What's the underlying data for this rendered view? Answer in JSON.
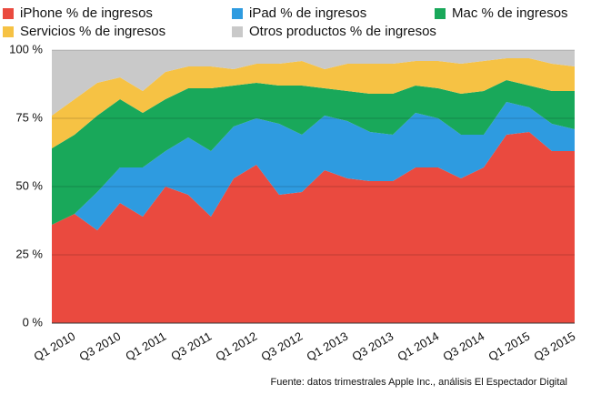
{
  "chart_data": {
    "type": "stacked_area",
    "categories": [
      null,
      "Q1 2010",
      null,
      "Q3 2010",
      null,
      "Q1 2011",
      null,
      "Q3 2011",
      null,
      "Q1 2012",
      null,
      "Q3 2012",
      null,
      "Q1 2013",
      null,
      "Q3 2013",
      null,
      "Q1 2014",
      null,
      "Q3 2014",
      null,
      "Q1 2015",
      null,
      "Q3 2015"
    ],
    "series": [
      {
        "name": "iPhone % de ingresos",
        "color": "#ea4a3f",
        "values": [
          36,
          40,
          34,
          44,
          39,
          50,
          47,
          39,
          53,
          58,
          47,
          48,
          56,
          53,
          52,
          52,
          57,
          57,
          53,
          57,
          69,
          70,
          63,
          63
        ]
      },
      {
        "name": "iPad % de ingresos",
        "color": "#2e9be0",
        "values": [
          0,
          0,
          14,
          13,
          18,
          13,
          21,
          24,
          19,
          17,
          26,
          21,
          20,
          21,
          18,
          17,
          20,
          18,
          16,
          12,
          12,
          9,
          10,
          8
        ]
      },
      {
        "name": "Mac % de ingresos",
        "color": "#19a85a",
        "values": [
          28,
          29,
          28,
          25,
          20,
          19,
          18,
          23,
          15,
          13,
          14,
          18,
          10,
          11,
          14,
          15,
          10,
          11,
          15,
          16,
          8,
          8,
          12,
          14
        ]
      },
      {
        "name": "Servicios % de ingresos",
        "color": "#f6c244",
        "values": [
          12,
          13,
          12,
          8,
          8,
          10,
          8,
          8,
          6,
          7,
          8,
          9,
          7,
          10,
          11,
          11,
          9,
          10,
          11,
          11,
          8,
          10,
          10,
          9
        ]
      },
      {
        "name": "Otros productos % de ingresos",
        "color": "#c9c9c9",
        "values": [
          24,
          18,
          12,
          10,
          15,
          8,
          6,
          6,
          7,
          5,
          5,
          4,
          7,
          5,
          5,
          5,
          4,
          4,
          5,
          4,
          3,
          3,
          5,
          6
        ]
      }
    ],
    "ylim": [
      0,
      100
    ],
    "yticks": [
      {
        "value": 0,
        "label": "0 %"
      },
      {
        "value": 25,
        "label": "25 %"
      },
      {
        "value": 50,
        "label": "50 %"
      },
      {
        "value": 75,
        "label": "75 %"
      },
      {
        "value": 100,
        "label": "100 %"
      }
    ],
    "grid": true,
    "source": "Fuente: datos trimestrales Apple Inc., análisis El Espectador Digital"
  }
}
